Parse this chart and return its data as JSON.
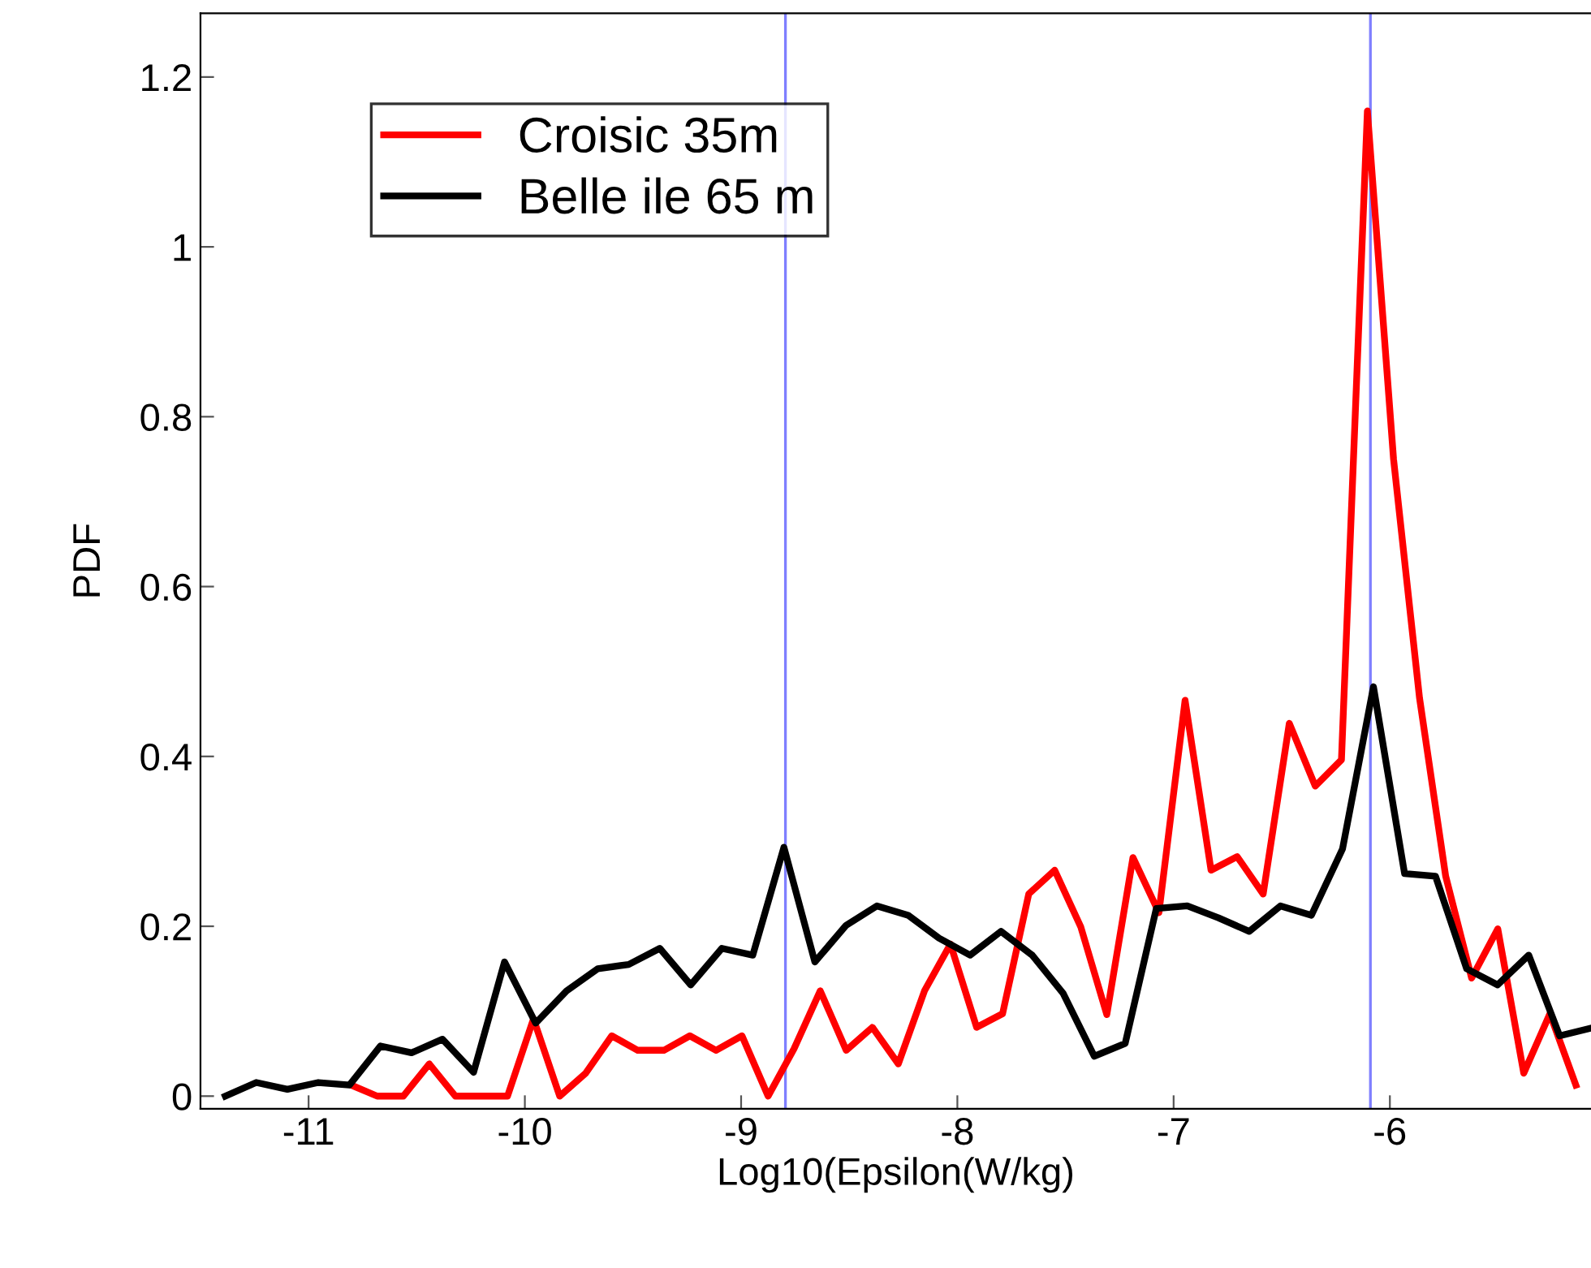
{
  "chart_data": {
    "type": "line",
    "xlabel": "Log10(Epsilon(W/kg)",
    "ylabel": "PDF",
    "xlim": [
      -11.5,
      -5.07
    ],
    "ylim": [
      -0.015,
      1.275
    ],
    "xticks": [
      -11,
      -10,
      -9,
      -8,
      -7,
      -6
    ],
    "yticks": [
      0,
      0.2,
      0.4,
      0.6,
      0.8,
      1,
      1.2
    ],
    "grid": false,
    "legend": "top left",
    "marker": "none",
    "line_style": "solid",
    "series": [
      {
        "name": "Croisic 35m",
        "color": "#ff0000",
        "x": [
          -10.803,
          -10.683,
          -10.562,
          -10.442,
          -10.321,
          -10.201,
          -10.08,
          -9.96,
          -9.839,
          -9.719,
          -9.598,
          -9.478,
          -9.357,
          -9.237,
          -9.116,
          -8.996,
          -8.875,
          -8.755,
          -8.634,
          -8.514,
          -8.393,
          -8.273,
          -8.152,
          -8.032,
          -7.911,
          -7.791,
          -7.67,
          -7.55,
          -7.429,
          -7.309,
          -7.188,
          -7.068,
          -6.947,
          -6.827,
          -6.706,
          -6.586,
          -6.465,
          -6.345,
          -6.224,
          -6.104,
          -5.983,
          -5.863,
          -5.742,
          -5.622,
          -5.501,
          -5.381,
          -5.26,
          -5.14
        ],
        "values": [
          0.013,
          0,
          0,
          0.038,
          0,
          0,
          0,
          0.091,
          0,
          0.027,
          0.071,
          0.054,
          0.054,
          0.071,
          0.054,
          0.071,
          0,
          0.056,
          0.124,
          0.054,
          0.081,
          0.038,
          0.124,
          0.179,
          0.081,
          0.097,
          0.238,
          0.266,
          0.199,
          0.096,
          0.281,
          0.216,
          0.466,
          0.266,
          0.282,
          0.238,
          0.439,
          0.365,
          0.396,
          1.16,
          0.75,
          0.469,
          0.259,
          0.139,
          0.197,
          0.027,
          0.097,
          0.013
        ]
      },
      {
        "name": "Belle ile 65 m",
        "color": "#000000",
        "x": [
          -11.385,
          -11.242,
          -11.098,
          -10.955,
          -10.811,
          -10.668,
          -10.524,
          -10.381,
          -10.237,
          -10.094,
          -9.95,
          -9.807,
          -9.663,
          -9.52,
          -9.376,
          -9.233,
          -9.089,
          -8.946,
          -8.802,
          -8.659,
          -8.515,
          -8.372,
          -8.228,
          -8.085,
          -7.941,
          -7.798,
          -7.654,
          -7.511,
          -7.367,
          -7.224,
          -7.08,
          -6.937,
          -6.793,
          -6.65,
          -6.506,
          -6.363,
          -6.219,
          -6.076,
          -5.932,
          -5.789,
          -5.645,
          -5.502,
          -5.358,
          -5.215,
          -5.071
        ],
        "values": [
          0,
          0.016,
          0.008,
          0.016,
          0.013,
          0.059,
          0.051,
          0.067,
          0.028,
          0.158,
          0.086,
          0.124,
          0.15,
          0.155,
          0.174,
          0.131,
          0.174,
          0.166,
          0.293,
          0.158,
          0.201,
          0.224,
          0.213,
          0.186,
          0.166,
          0.194,
          0.166,
          0.121,
          0.047,
          0.062,
          0.221,
          0.224,
          0.21,
          0.194,
          0.224,
          0.213,
          0.291,
          0.482,
          0.262,
          0.259,
          0.15,
          0.131,
          0.166,
          0.071,
          0.08
        ]
      }
    ],
    "ref_lines": [
      {
        "axis": "x",
        "value": -8.795,
        "label": null,
        "color": "#7f7fff"
      },
      {
        "axis": "x",
        "value": -6.09,
        "label": null,
        "color": "#7f7fff"
      }
    ]
  }
}
